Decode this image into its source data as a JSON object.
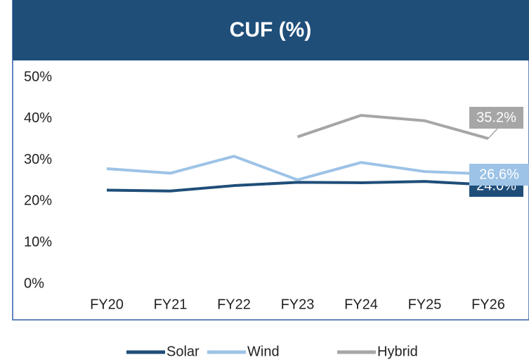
{
  "chart_data": {
    "type": "line",
    "title": "CUF (%)",
    "categories": [
      "FY20",
      "FY21",
      "FY22",
      "FY23",
      "FY24",
      "FY25",
      "FY26"
    ],
    "series": [
      {
        "name": "Solar",
        "color": "#1f4e79",
        "values": [
          22.7,
          22.5,
          23.8,
          24.6,
          24.5,
          24.8,
          24.0
        ],
        "value_labels": [
          null,
          null,
          null,
          null,
          null,
          null,
          "24.0%"
        ]
      },
      {
        "name": "Wind",
        "color": "#9dc3e6",
        "values": [
          27.9,
          26.8,
          30.9,
          25.2,
          29.4,
          27.2,
          26.6
        ],
        "value_labels": [
          null,
          null,
          null,
          null,
          null,
          null,
          "26.6%"
        ]
      },
      {
        "name": "Hybrid",
        "color": "#a6a6a6",
        "values": [
          null,
          null,
          null,
          35.6,
          40.8,
          39.5,
          35.2
        ],
        "value_labels": [
          null,
          null,
          null,
          null,
          null,
          null,
          "35.2%"
        ]
      }
    ],
    "ylim": [
      0,
      50
    ],
    "yticks": [
      {
        "value": 0,
        "label": "0%"
      },
      {
        "value": 10,
        "label": "10%"
      },
      {
        "value": 20,
        "label": "20%"
      },
      {
        "value": 30,
        "label": "30%"
      },
      {
        "value": 40,
        "label": "40%"
      },
      {
        "value": 50,
        "label": "50%"
      }
    ],
    "legend": "bottom",
    "grid": false
  }
}
